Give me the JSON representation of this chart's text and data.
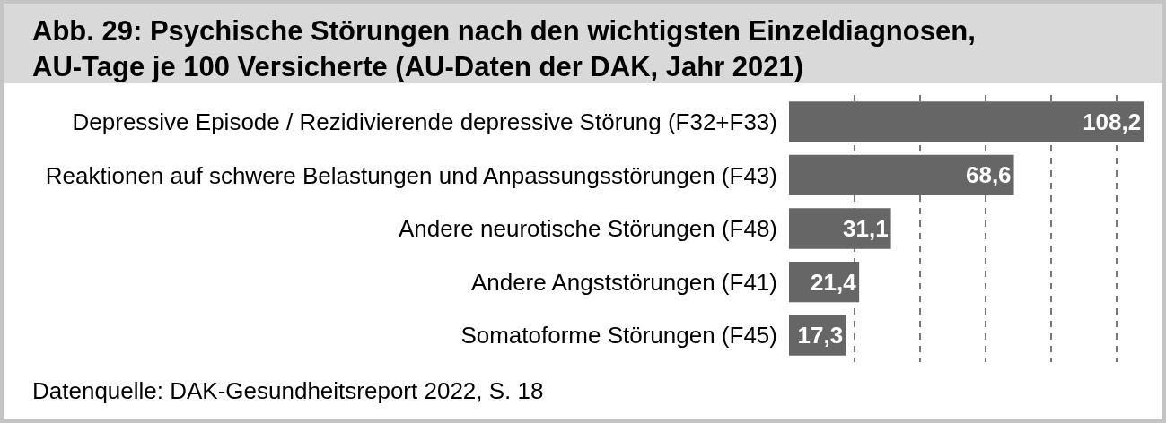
{
  "chart_data": {
    "type": "bar",
    "orientation": "horizontal",
    "title": "Abb. 29: Psychische Störungen nach den wichtigsten Einzeldiagnosen, AU-Tage je 100 Versicherte (AU-Daten der DAK, Jahr 2021)",
    "categories": [
      "Depressive Episode / Rezidivierende depressive Störung (F32+F33)",
      "Reaktionen auf schwere Belastungen und Anpassungsstörungen (F43)",
      "Andere neurotische Störungen (F48)",
      "Andere Angststörungen (F41)",
      "Somatoforme Störungen (F45)"
    ],
    "values": [
      108.2,
      68.6,
      31.1,
      21.4,
      17.3
    ],
    "value_labels": [
      "108,2",
      "68,6",
      "31,1",
      "21,4",
      "17,3"
    ],
    "color": "#666666",
    "grid": "x",
    "tick_labels": "y",
    "annotations": [
      "Datenquelle: DAK-Gesundheitsreport 2022, S. 18"
    ]
  }
}
